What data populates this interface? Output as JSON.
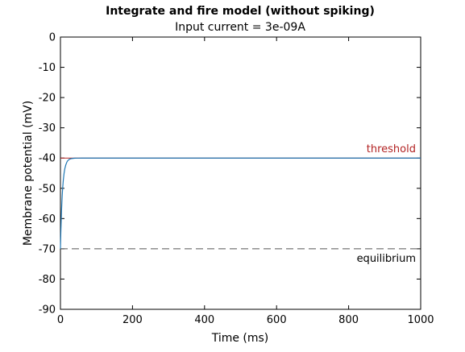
{
  "chart_data": {
    "type": "line",
    "title": "Integrate and fire model (without spiking)",
    "subtitle": "Input current = 3e-09A",
    "xlabel": "Time (ms)",
    "ylabel": "Membrane potential (mV)",
    "xlim": [
      0,
      1000
    ],
    "ylim": [
      -90,
      0
    ],
    "xticks": [
      0,
      200,
      400,
      600,
      800,
      1000
    ],
    "yticks": [
      0,
      -10,
      -20,
      -30,
      -40,
      -50,
      -60,
      -70,
      -80,
      -90
    ],
    "grid": false,
    "series": [
      {
        "color": "#1f77b4",
        "x": [
          0,
          1,
          2,
          3,
          4,
          5,
          6,
          8,
          10,
          12,
          15,
          18,
          20,
          25,
          30,
          35,
          40,
          45,
          50,
          60,
          70,
          80,
          100,
          150,
          200,
          300,
          400,
          500,
          600,
          700,
          800,
          900,
          1000
        ],
        "y": [
          -70,
          -65.0,
          -60.9,
          -57.4,
          -54.6,
          -52.2,
          -50.2,
          -47.2,
          -45.1,
          -43.6,
          -42.2,
          -41.3,
          -40.9,
          -40.4,
          -40.2,
          -40.1,
          -40.05,
          -40.03,
          -40.02,
          -40.0,
          -40.0,
          -40.0,
          -40.0,
          -40.0,
          -40.0,
          -40.0,
          -40.0,
          -40.0,
          -40.0,
          -40.0,
          -40.0,
          -40.0,
          -40.0
        ]
      }
    ],
    "reference_lines": [
      {
        "label": "threshold",
        "y": -40,
        "style": "solid",
        "color": "#b22222"
      },
      {
        "label": "equilibrium",
        "y": -70,
        "style": "dashed",
        "color": "#555555"
      }
    ]
  }
}
